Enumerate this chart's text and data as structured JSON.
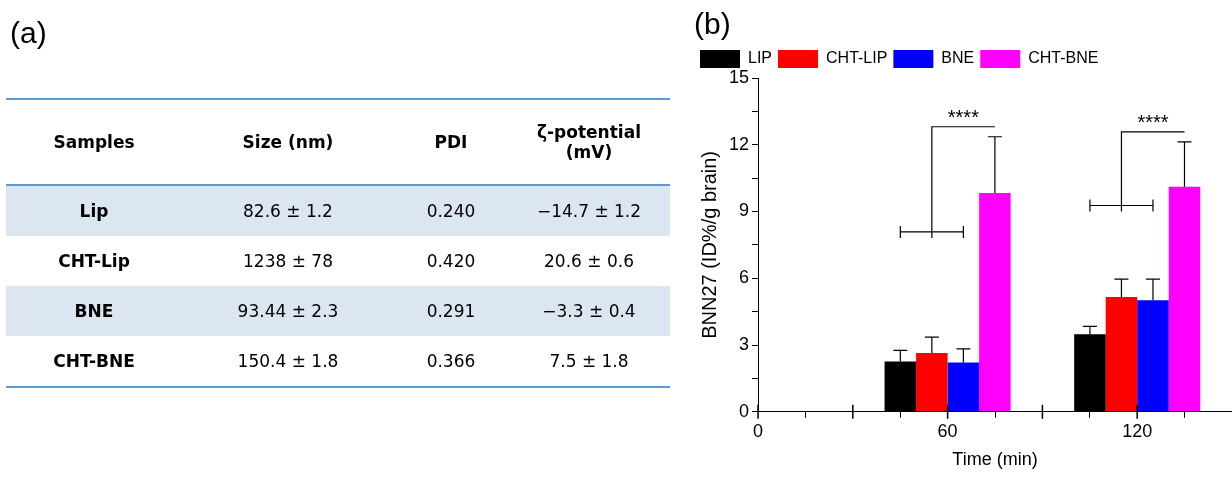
{
  "chart_data": [
    {
      "type": "other",
      "title": "(a)",
      "annotations": [
        "Samples",
        "Size (nm)",
        "PDI",
        "ζ-potential (mV)",
        "Lip",
        "82.6 ± 1.2",
        "0.240",
        "−14.7 ± 1.2",
        "CHT-Lip",
        "1238 ± 78",
        "0.420",
        "20.6 ± 0.6",
        "BNE",
        "93.44 ± 2.3",
        "0.291",
        "−3.3 ± 0.4",
        "CHT-BNE",
        "150.4 ± 1.8",
        "0.366",
        "7.5 ± 1.8"
      ]
    },
    {
      "type": "bar",
      "title": "(b)",
      "xlabel": "Time (min)",
      "ylabel": "BNN27 (ID%/g brain)",
      "x": [
        60,
        120
      ],
      "series": [
        {
          "name": "LIP",
          "color": "#000000",
          "values": [
            2.26,
            3.48
          ],
          "errors": [
            [
              2.26,
              2.76
            ],
            [
              3.48,
              3.84
            ]
          ]
        },
        {
          "name": "CHT-LIP",
          "color": "#ff0000",
          "values": [
            2.64,
            5.16
          ],
          "errors": [
            [
              2.64,
              3.36
            ],
            [
              5.16,
              5.96
            ]
          ]
        },
        {
          "name": "BNE",
          "color": "#0000ff",
          "values": [
            2.21,
            5.01
          ],
          "errors": [
            [
              2.21,
              2.83
            ],
            [
              5.01,
              5.96
            ]
          ]
        },
        {
          "name": "CHT-BNE",
          "color": "#ff00ff",
          "values": [
            9.83,
            10.11
          ],
          "errors": [
            [
              9.83,
              12.36
            ],
            [
              10.11,
              12.13
            ]
          ]
        }
      ],
      "xlim": [
        0,
        150
      ],
      "xticks": [
        0,
        {
          "value": 30,
          "label": null
        },
        60,
        {
          "value": 90,
          "label": null
        },
        120
      ],
      "ylim": [
        0,
        15
      ],
      "yticks": [
        0,
        {
          "value": 1.5,
          "label": null
        },
        3,
        {
          "value": 4.5,
          "label": null
        },
        6,
        {
          "value": 7.5,
          "label": null
        },
        9,
        {
          "value": 10.5,
          "label": null
        },
        12,
        {
          "value": 13.5,
          "label": null
        },
        15
      ],
      "annotations": [
        "****",
        "****"
      ],
      "legend": "top left",
      "grid": false
    }
  ]
}
